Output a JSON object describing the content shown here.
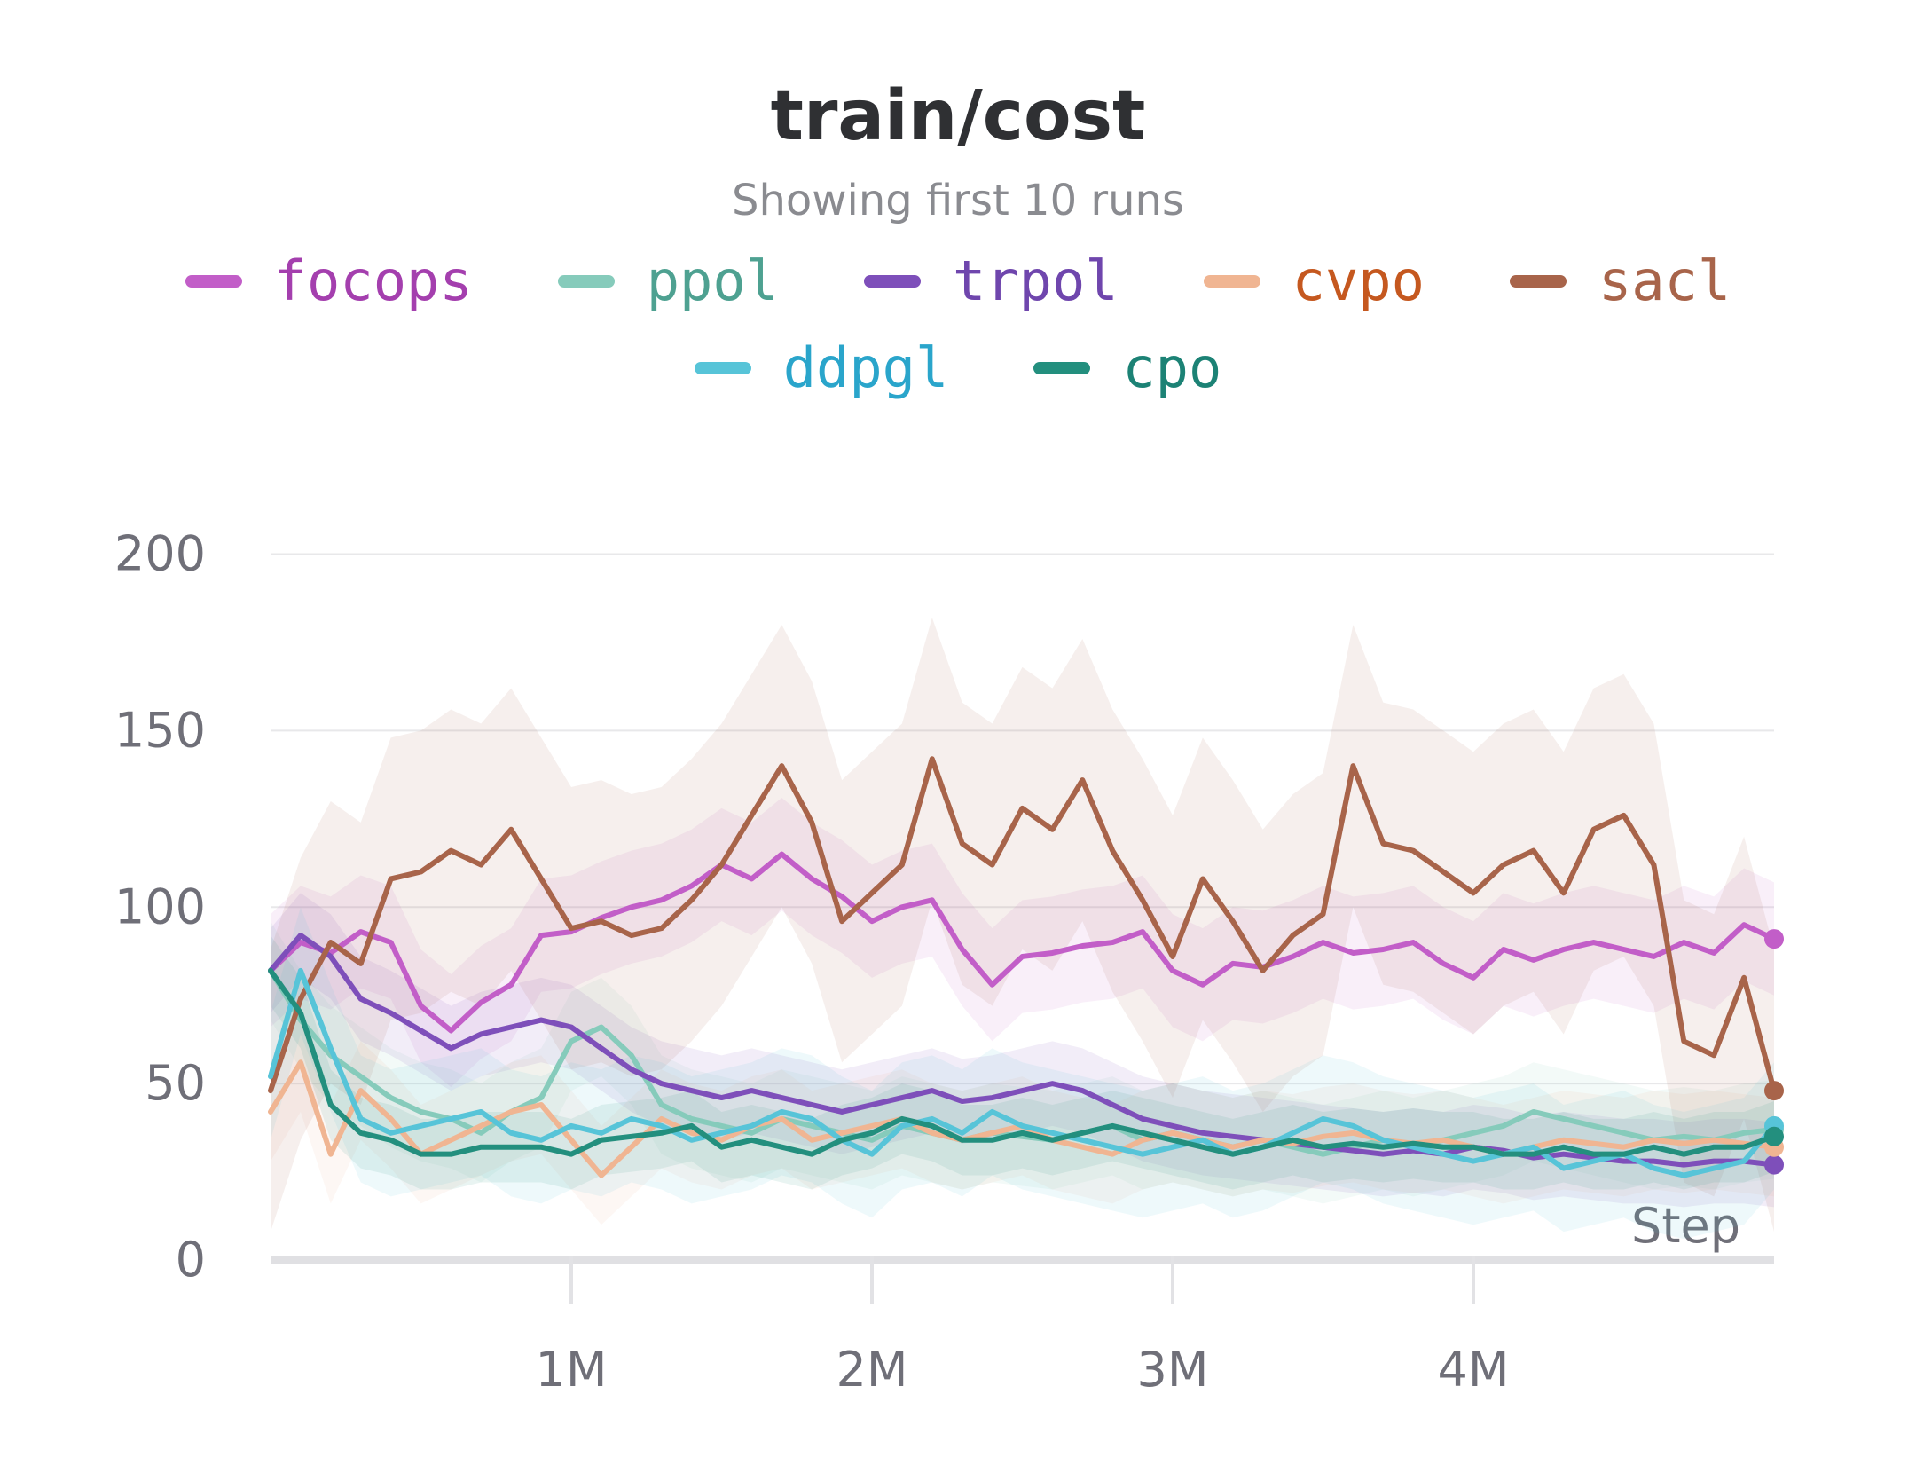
{
  "chart_data": {
    "type": "line",
    "title": "train/cost",
    "subtitle": "Showing first 10 runs",
    "xlabel": "Step",
    "ylabel": "",
    "xlim": [
      0,
      5000000
    ],
    "ylim": [
      0,
      220
    ],
    "x_ticks": [
      1000000,
      2000000,
      3000000,
      4000000
    ],
    "x_tick_labels": [
      "1M",
      "2M",
      "3M",
      "4M"
    ],
    "y_ticks": [
      0,
      50,
      100,
      150,
      200
    ],
    "y_tick_labels": [
      "0",
      "50",
      "100",
      "150",
      "200"
    ],
    "grid": "horizontal",
    "legend_position": "top",
    "series": [
      {
        "name": "focops",
        "color": "#c25ec8",
        "text_color": "#a43fae",
        "band": 16,
        "x": [
          0,
          100000,
          200000,
          300000,
          400000,
          500000,
          600000,
          700000,
          800000,
          900000,
          1000000,
          1100000,
          1200000,
          1300000,
          1400000,
          1500000,
          1600000,
          1700000,
          1800000,
          1900000,
          2000000,
          2100000,
          2200000,
          2300000,
          2400000,
          2500000,
          2600000,
          2700000,
          2800000,
          2900000,
          3000000,
          3100000,
          3200000,
          3300000,
          3400000,
          3500000,
          3600000,
          3700000,
          3800000,
          3900000,
          4000000,
          4100000,
          4200000,
          4300000,
          4400000,
          4500000,
          4600000,
          4700000,
          4800000,
          4900000,
          5000000
        ],
        "values": [
          82,
          90,
          87,
          93,
          90,
          72,
          65,
          73,
          78,
          92,
          93,
          97,
          100,
          102,
          106,
          112,
          108,
          115,
          108,
          103,
          96,
          100,
          102,
          88,
          78,
          86,
          87,
          89,
          90,
          93,
          82,
          78,
          84,
          83,
          86,
          90,
          87,
          88,
          90,
          84,
          80,
          88,
          85,
          88,
          90,
          88,
          86,
          90,
          87,
          95,
          91
        ]
      },
      {
        "name": "ppol",
        "color": "#86cbbb",
        "text_color": "#4ea191",
        "band": 14,
        "x": [
          0,
          100000,
          200000,
          300000,
          400000,
          500000,
          600000,
          700000,
          800000,
          900000,
          1000000,
          1100000,
          1200000,
          1300000,
          1400000,
          1500000,
          1600000,
          1700000,
          1800000,
          1900000,
          2000000,
          2100000,
          2200000,
          2300000,
          2400000,
          2500000,
          2600000,
          2700000,
          2800000,
          2900000,
          3000000,
          3100000,
          3200000,
          3300000,
          3400000,
          3500000,
          3600000,
          3700000,
          3800000,
          3900000,
          4000000,
          4100000,
          4200000,
          4300000,
          4400000,
          4500000,
          4600000,
          4700000,
          4800000,
          4900000,
          5000000
        ],
        "values": [
          82,
          68,
          58,
          52,
          46,
          42,
          40,
          36,
          42,
          46,
          62,
          66,
          58,
          44,
          40,
          38,
          36,
          40,
          38,
          36,
          34,
          38,
          36,
          34,
          36,
          35,
          34,
          36,
          38,
          34,
          36,
          34,
          32,
          34,
          32,
          30,
          32,
          34,
          32,
          34,
          36,
          38,
          42,
          40,
          38,
          36,
          34,
          35,
          34,
          36,
          37
        ]
      },
      {
        "name": "trpol",
        "color": "#7e4fba",
        "text_color": "#6f46ad",
        "band": 12,
        "x": [
          0,
          100000,
          200000,
          300000,
          400000,
          500000,
          600000,
          700000,
          800000,
          900000,
          1000000,
          1100000,
          1200000,
          1300000,
          1400000,
          1500000,
          1600000,
          1700000,
          1800000,
          1900000,
          2000000,
          2100000,
          2200000,
          2300000,
          2400000,
          2500000,
          2600000,
          2700000,
          2800000,
          2900000,
          3000000,
          3100000,
          3200000,
          3300000,
          3400000,
          3500000,
          3600000,
          3700000,
          3800000,
          3900000,
          4000000,
          4100000,
          4200000,
          4300000,
          4400000,
          4500000,
          4600000,
          4700000,
          4800000,
          4900000,
          5000000
        ],
        "values": [
          82,
          92,
          86,
          74,
          70,
          65,
          60,
          64,
          66,
          68,
          66,
          60,
          54,
          50,
          48,
          46,
          48,
          46,
          44,
          42,
          44,
          46,
          48,
          45,
          46,
          48,
          50,
          48,
          44,
          40,
          38,
          36,
          35,
          34,
          33,
          32,
          31,
          30,
          31,
          30,
          32,
          31,
          29,
          30,
          29,
          28,
          28,
          27,
          28,
          28,
          27
        ]
      },
      {
        "name": "cvpo",
        "color": "#f0b592",
        "text_color": "#c5581f",
        "band": 14,
        "x": [
          0,
          100000,
          200000,
          300000,
          400000,
          500000,
          600000,
          700000,
          800000,
          900000,
          1000000,
          1100000,
          1200000,
          1300000,
          1400000,
          1500000,
          1600000,
          1700000,
          1800000,
          1900000,
          2000000,
          2100000,
          2200000,
          2300000,
          2400000,
          2500000,
          2600000,
          2700000,
          2800000,
          2900000,
          3000000,
          3100000,
          3200000,
          3300000,
          3400000,
          3500000,
          3600000,
          3700000,
          3800000,
          3900000,
          4000000,
          4100000,
          4200000,
          4300000,
          4400000,
          4500000,
          4600000,
          4700000,
          4800000,
          4900000,
          5000000
        ],
        "values": [
          42,
          56,
          30,
          48,
          40,
          30,
          34,
          38,
          42,
          44,
          34,
          24,
          32,
          40,
          36,
          34,
          38,
          40,
          34,
          36,
          38,
          40,
          36,
          34,
          36,
          38,
          34,
          32,
          30,
          34,
          36,
          34,
          32,
          34,
          33,
          35,
          36,
          34,
          33,
          34,
          32,
          30,
          32,
          34,
          33,
          32,
          34,
          33,
          34,
          33,
          32
        ]
      },
      {
        "name": "sacl",
        "color": "#a8644a",
        "text_color": "#a8644a",
        "band": 40,
        "x": [
          0,
          100000,
          200000,
          300000,
          400000,
          500000,
          600000,
          700000,
          800000,
          900000,
          1000000,
          1100000,
          1200000,
          1300000,
          1400000,
          1500000,
          1600000,
          1700000,
          1800000,
          1900000,
          2000000,
          2100000,
          2200000,
          2300000,
          2400000,
          2500000,
          2600000,
          2700000,
          2800000,
          2900000,
          3000000,
          3100000,
          3200000,
          3300000,
          3400000,
          3500000,
          3600000,
          3700000,
          3800000,
          3900000,
          4000000,
          4100000,
          4200000,
          4300000,
          4400000,
          4500000,
          4600000,
          4700000,
          4800000,
          4900000,
          5000000
        ],
        "values": [
          48,
          74,
          90,
          84,
          108,
          110,
          116,
          112,
          122,
          108,
          94,
          96,
          92,
          94,
          102,
          112,
          126,
          140,
          124,
          96,
          104,
          112,
          142,
          118,
          112,
          128,
          122,
          136,
          116,
          102,
          86,
          108,
          96,
          82,
          92,
          98,
          140,
          118,
          116,
          110,
          104,
          112,
          116,
          104,
          122,
          126,
          112,
          62,
          58,
          80,
          48
        ]
      },
      {
        "name": "ddpgl",
        "color": "#57c4d8",
        "text_color": "#2aa5cb",
        "band": 18,
        "x": [
          0,
          100000,
          200000,
          300000,
          400000,
          500000,
          600000,
          700000,
          800000,
          900000,
          1000000,
          1100000,
          1200000,
          1300000,
          1400000,
          1500000,
          1600000,
          1700000,
          1800000,
          1900000,
          2000000,
          2100000,
          2200000,
          2300000,
          2400000,
          2500000,
          2600000,
          2700000,
          2800000,
          2900000,
          3000000,
          3100000,
          3200000,
          3300000,
          3400000,
          3500000,
          3600000,
          3700000,
          3800000,
          3900000,
          4000000,
          4100000,
          4200000,
          4300000,
          4400000,
          4500000,
          4600000,
          4700000,
          4800000,
          4900000,
          5000000
        ],
        "values": [
          52,
          82,
          60,
          40,
          36,
          38,
          40,
          42,
          36,
          34,
          38,
          36,
          40,
          38,
          34,
          36,
          38,
          42,
          40,
          34,
          30,
          38,
          40,
          36,
          42,
          38,
          36,
          34,
          32,
          30,
          32,
          34,
          30,
          32,
          36,
          40,
          38,
          34,
          32,
          30,
          28,
          30,
          32,
          26,
          28,
          30,
          26,
          24,
          26,
          28,
          38
        ]
      },
      {
        "name": "cpo",
        "color": "#238f7e",
        "text_color": "#1c8275",
        "band": 10,
        "x": [
          0,
          100000,
          200000,
          300000,
          400000,
          500000,
          600000,
          700000,
          800000,
          900000,
          1000000,
          1100000,
          1200000,
          1300000,
          1400000,
          1500000,
          1600000,
          1700000,
          1800000,
          1900000,
          2000000,
          2100000,
          2200000,
          2300000,
          2400000,
          2500000,
          2600000,
          2700000,
          2800000,
          2900000,
          3000000,
          3100000,
          3200000,
          3300000,
          3400000,
          3500000,
          3600000,
          3700000,
          3800000,
          3900000,
          4000000,
          4100000,
          4200000,
          4300000,
          4400000,
          4500000,
          4600000,
          4700000,
          4800000,
          4900000,
          5000000
        ],
        "values": [
          82,
          70,
          44,
          36,
          34,
          30,
          30,
          32,
          32,
          32,
          30,
          34,
          35,
          36,
          38,
          32,
          34,
          32,
          30,
          34,
          36,
          40,
          38,
          34,
          34,
          36,
          34,
          36,
          38,
          36,
          34,
          32,
          30,
          32,
          34,
          32,
          33,
          32,
          33,
          32,
          32,
          30,
          30,
          32,
          30,
          30,
          32,
          30,
          32,
          32,
          35
        ]
      }
    ]
  }
}
